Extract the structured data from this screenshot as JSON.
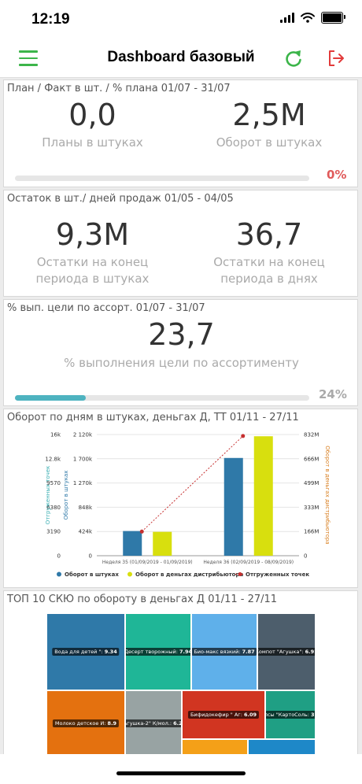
{
  "status": {
    "time": "12:19"
  },
  "nav": {
    "title": "Dashboard базовый"
  },
  "cards": {
    "plan": {
      "title": "План / Факт в шт. / % плана 01/07 - 31/07",
      "left_value": "0,0",
      "left_label": "Планы в штуках",
      "right_value": "2,5M",
      "right_label": "Оборот в штуках",
      "percent": "0%",
      "progress": 0,
      "percent_color": "#e05a5a"
    },
    "stock": {
      "title": "Остаток в шт./ дней продаж 01/05 - 04/05",
      "left_value": "9,3M",
      "left_label_1": "Остатки на конец",
      "left_label_2": "периода в штуках",
      "right_value": "36,7",
      "right_label_1": "Остатки на конец",
      "right_label_2": "периода в днях"
    },
    "assort": {
      "title": "% вып. цели по ассорт. 01/07 - 31/07",
      "value": "23,7",
      "label": "% выполнения цели по ассортименту",
      "percent": "24%",
      "progress": 0.24,
      "percent_color": "#aaaaaa"
    },
    "turnover": {
      "title": "Оборот по дням в штуках, деньгах Д, ТТ 01/11 - 27/11"
    },
    "top10": {
      "title": "ТОП 10 СКЮ по обороту в деньгах Д 01/11 - 27/11"
    }
  },
  "chart_data": {
    "type": "bar",
    "categories": [
      "Неделя 35 (01/09/2019 - 01/09/2019)",
      "Неделя 36 (02/09/2019 - 08/09/2019)"
    ],
    "series": [
      {
        "name": "Оборот в штуках",
        "type": "bar",
        "axis": "y1",
        "color": "#2f79a8",
        "values": [
          432,
          1710
        ]
      },
      {
        "name": "Оборот в деньгах дистрибьютора",
        "type": "bar",
        "axis": "y3",
        "color": "#d8df0e",
        "values": [
          164,
          820
        ]
      },
      {
        "name": "Отгруженных точек",
        "type": "line",
        "axis": "y0",
        "color": "#c62f2f",
        "values": [
          3190,
          15800
        ]
      }
    ],
    "axes": {
      "y0": {
        "label": "Отгруженных точек",
        "ticks": [
          "0",
          "3190",
          "6380",
          "9570",
          "12.8k",
          "16k"
        ],
        "max": 16000,
        "color": "#3aaeb2"
      },
      "y1": {
        "label": "Оборот в штуках",
        "ticks": [
          "0",
          "424k",
          "848k",
          "1 270k",
          "1 700k",
          "2 120k"
        ],
        "max": 2120,
        "color": "#2f79a8"
      },
      "y3": {
        "label": "Оборот в деньгах дистрибьютора",
        "ticks": [
          "0",
          "166M",
          "333M",
          "499M",
          "666M",
          "832M"
        ],
        "max": 832,
        "color": "#d97f20"
      }
    },
    "legend": [
      "Оборот в штуках",
      "Оборот в деньгах дистрибьютора",
      "Отгруженных точек"
    ],
    "legend_position": "bottom"
  },
  "treemap": [
    {
      "label": "Вода для детей \"",
      "value": "9.34",
      "color": "#2f79a8"
    },
    {
      "label": "Десерт творожный",
      "value": "7.94",
      "color": "#1fb697"
    },
    {
      "label": "Био-макс вязкий",
      "value": "7.87",
      "color": "#5fb0ea"
    },
    {
      "label": "Компот \"Агушка\"",
      "value": "6.91",
      "color": "#4d5e6c"
    },
    {
      "label": "Молоко детское И",
      "value": "8.9",
      "color": "#e4710f"
    },
    {
      "label": "\"Агушка-2\" К/мол.",
      "value": "6.28",
      "color": "#98a3a3"
    },
    {
      "label": "Бифидокефир \" Аг",
      "value": "6.09",
      "color": "#d13521"
    },
    {
      "label": "Чипсы \"КартоСоль",
      "value": "3.67",
      "color": "#1f9f84"
    },
    {
      "label": "",
      "value": "",
      "color": "#f4a018"
    },
    {
      "label": "",
      "value": "",
      "color": "#1e88c8"
    }
  ]
}
